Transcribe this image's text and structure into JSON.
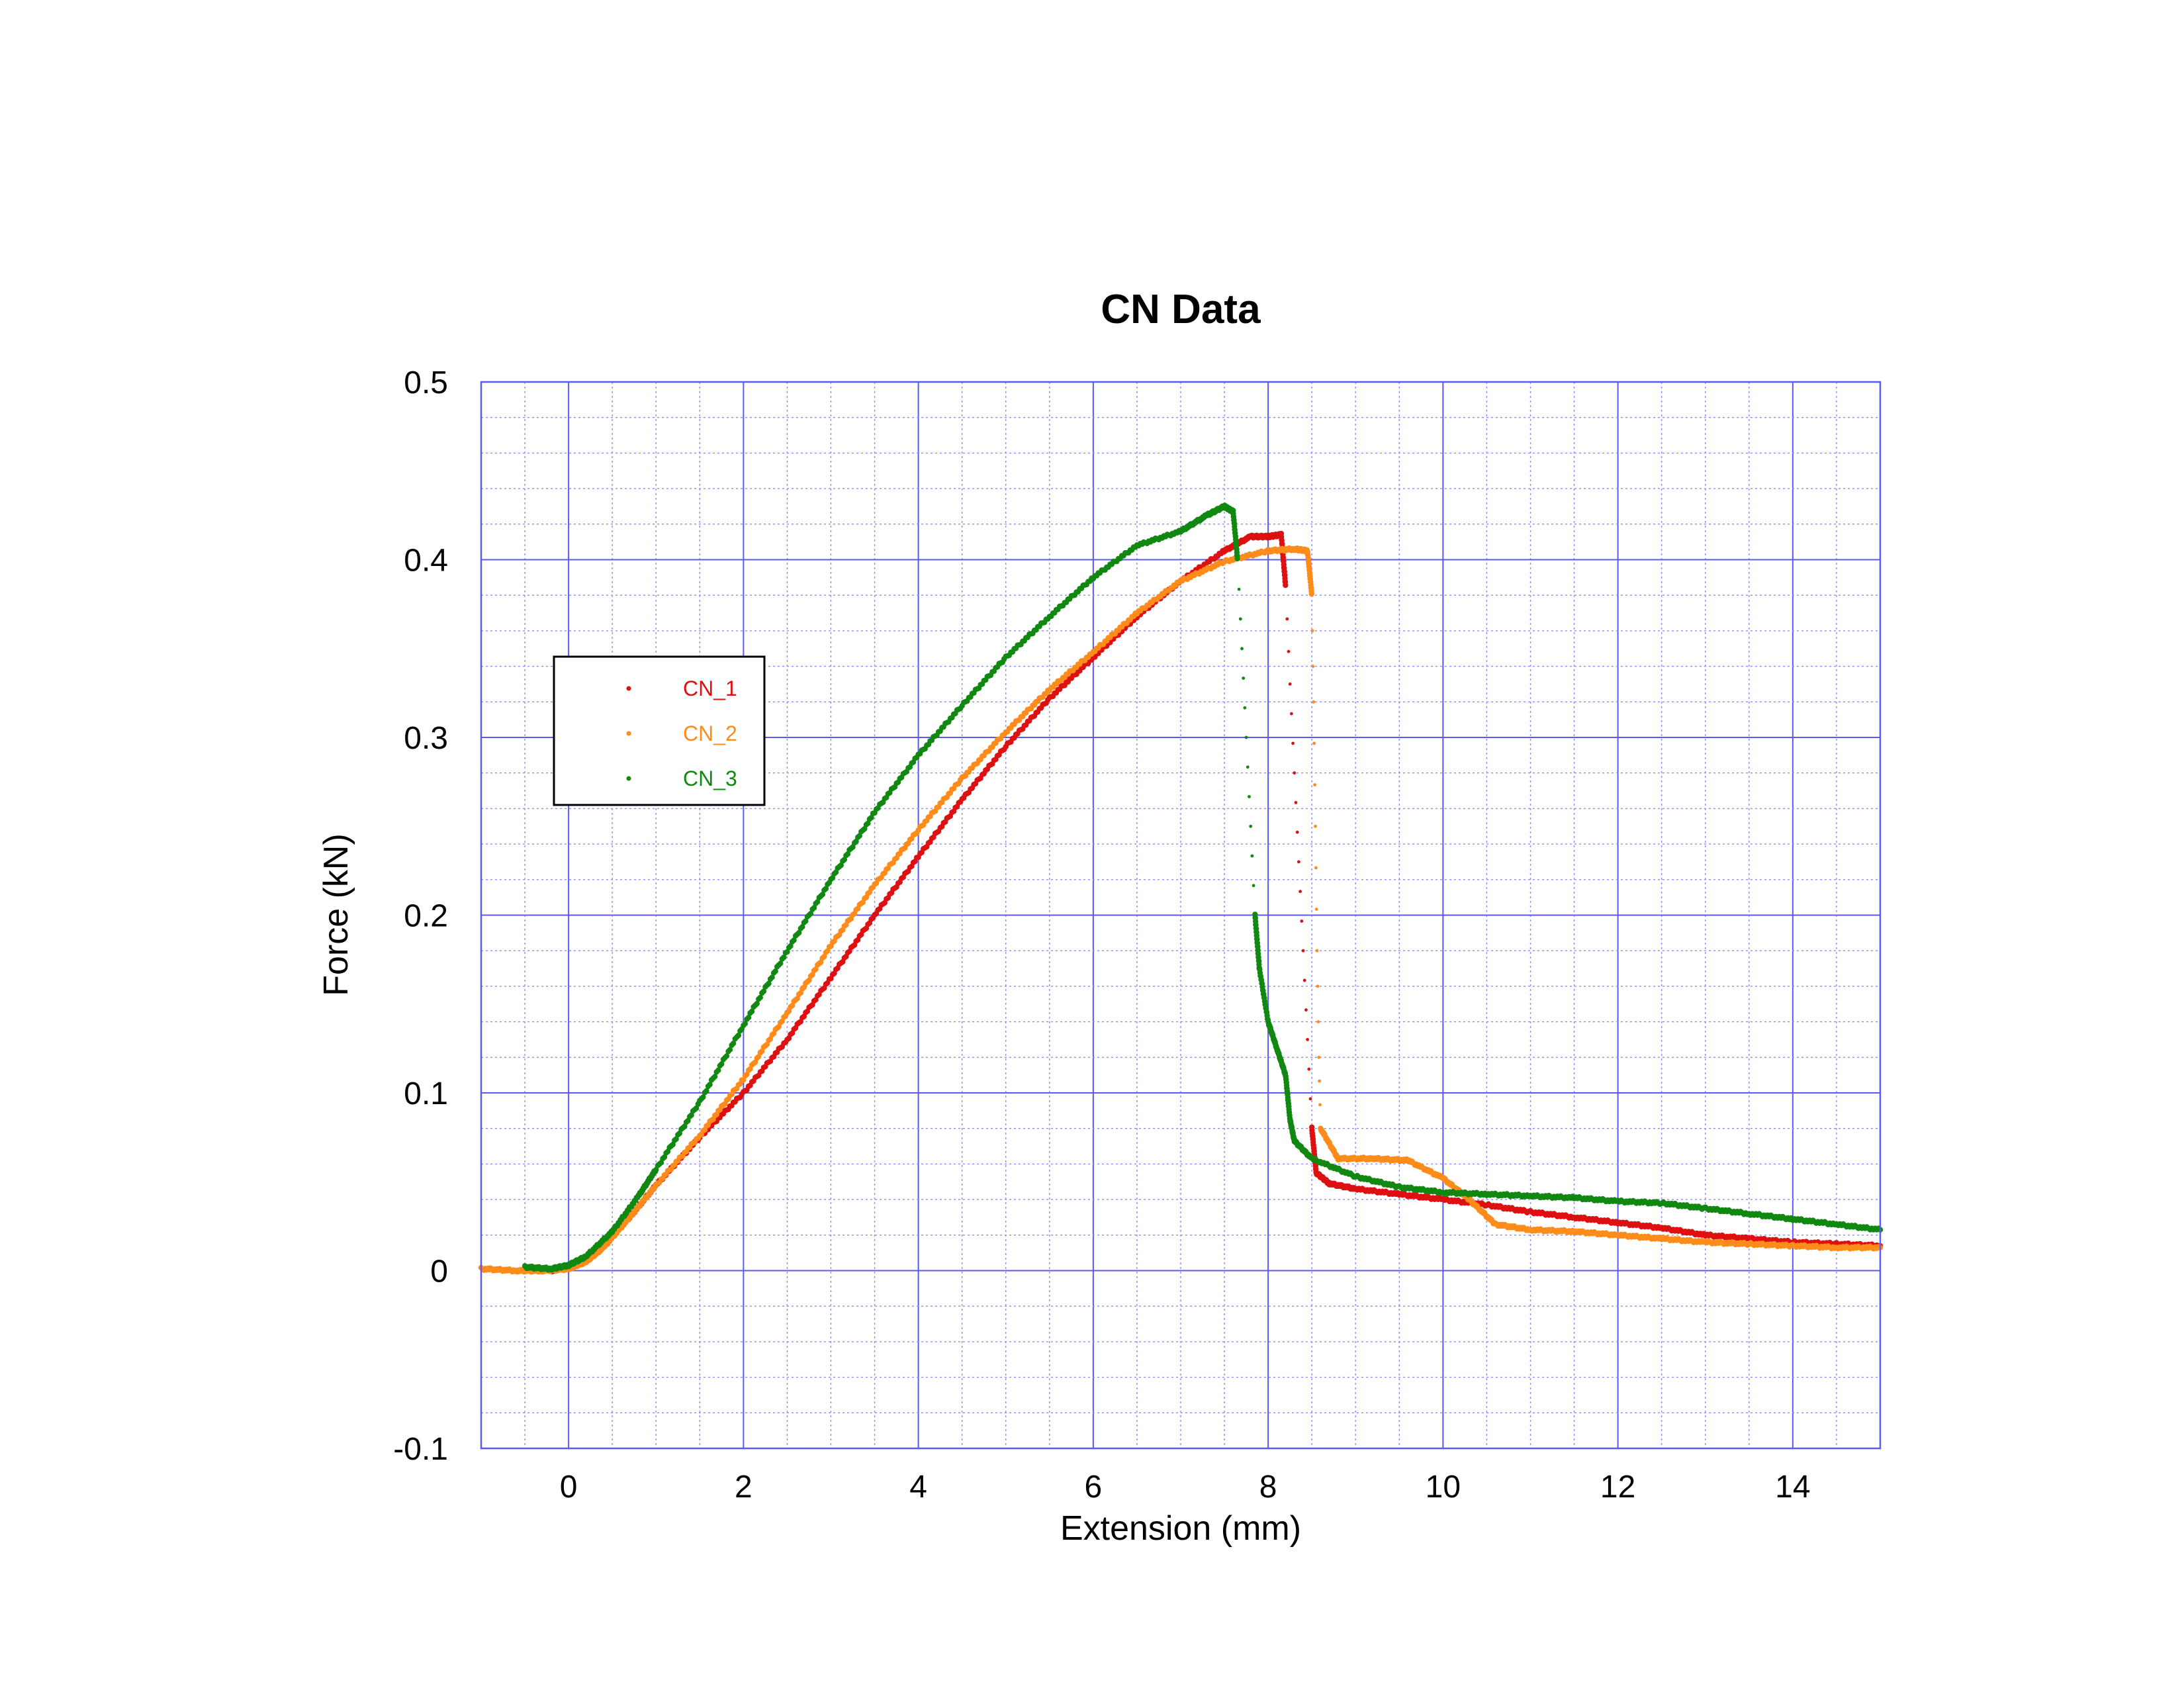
{
  "chart_data": {
    "type": "scatter",
    "title": "CN Data",
    "xlabel": "Extension (mm)",
    "ylabel": "Force (kN)",
    "xlim": [
      -1,
      15
    ],
    "ylim": [
      -0.1,
      0.5
    ],
    "x_ticks": [
      0,
      2,
      4,
      6,
      8,
      10,
      12,
      14
    ],
    "y_ticks": [
      -0.1,
      0,
      0.1,
      0.2,
      0.3,
      0.4,
      0.5
    ],
    "x_tick_labels": [
      "0",
      "2",
      "4",
      "6",
      "8",
      "10",
      "12",
      "14"
    ],
    "y_tick_labels": [
      "-0.1",
      "0",
      "0.1",
      "0.2",
      "0.3",
      "0.4",
      "0.5"
    ],
    "grid": "major and minor, blue",
    "legend_position": "upper-left",
    "colors": {
      "grid_major": "#5a5af0",
      "grid_minor": "#8c8cf5",
      "frame": "#5a5af0"
    },
    "series": [
      {
        "name": "CN_1",
        "color": "#dd1111",
        "points": [
          [
            -0.2,
            0.0
          ],
          [
            0.0,
            0.002
          ],
          [
            0.2,
            0.006
          ],
          [
            0.4,
            0.015
          ],
          [
            0.7,
            0.03
          ],
          [
            1.0,
            0.048
          ],
          [
            1.5,
            0.075
          ],
          [
            2.0,
            0.1
          ],
          [
            2.5,
            0.13
          ],
          [
            3.0,
            0.165
          ],
          [
            3.5,
            0.2
          ],
          [
            4.0,
            0.233
          ],
          [
            4.5,
            0.265
          ],
          [
            5.0,
            0.295
          ],
          [
            5.5,
            0.322
          ],
          [
            6.0,
            0.345
          ],
          [
            6.5,
            0.368
          ],
          [
            7.0,
            0.388
          ],
          [
            7.5,
            0.405
          ],
          [
            7.8,
            0.413
          ],
          [
            8.0,
            0.413
          ],
          [
            8.15,
            0.414
          ],
          [
            8.2,
            0.385
          ],
          [
            8.25,
            0.33
          ],
          [
            8.3,
            0.28
          ],
          [
            8.35,
            0.23
          ],
          [
            8.4,
            0.18
          ],
          [
            8.45,
            0.13
          ],
          [
            8.5,
            0.08
          ],
          [
            8.55,
            0.055
          ],
          [
            8.7,
            0.049
          ],
          [
            9.0,
            0.046
          ],
          [
            9.5,
            0.043
          ],
          [
            10.0,
            0.04
          ],
          [
            10.5,
            0.037
          ],
          [
            11.0,
            0.033
          ],
          [
            11.5,
            0.03
          ],
          [
            12.0,
            0.027
          ],
          [
            12.5,
            0.024
          ],
          [
            13.0,
            0.02
          ],
          [
            13.5,
            0.018
          ],
          [
            14.0,
            0.016
          ],
          [
            14.5,
            0.015
          ],
          [
            15.0,
            0.014
          ]
        ]
      },
      {
        "name": "CN_2",
        "color": "#ff8c1a",
        "points": [
          [
            -1.0,
            0.001
          ],
          [
            -0.6,
            0.0
          ],
          [
            -0.3,
            0.0
          ],
          [
            0.0,
            0.001
          ],
          [
            0.2,
            0.005
          ],
          [
            0.4,
            0.013
          ],
          [
            0.7,
            0.03
          ],
          [
            1.0,
            0.048
          ],
          [
            1.5,
            0.076
          ],
          [
            2.0,
            0.108
          ],
          [
            2.5,
            0.145
          ],
          [
            3.0,
            0.183
          ],
          [
            3.5,
            0.217
          ],
          [
            4.0,
            0.248
          ],
          [
            4.5,
            0.277
          ],
          [
            5.0,
            0.303
          ],
          [
            5.5,
            0.327
          ],
          [
            6.0,
            0.348
          ],
          [
            6.5,
            0.37
          ],
          [
            7.0,
            0.388
          ],
          [
            7.5,
            0.399
          ],
          [
            8.0,
            0.405
          ],
          [
            8.3,
            0.406
          ],
          [
            8.45,
            0.405
          ],
          [
            8.5,
            0.38
          ],
          [
            8.52,
            0.32
          ],
          [
            8.54,
            0.25
          ],
          [
            8.56,
            0.18
          ],
          [
            8.58,
            0.12
          ],
          [
            8.6,
            0.08
          ],
          [
            8.8,
            0.063
          ],
          [
            9.2,
            0.063
          ],
          [
            9.6,
            0.062
          ],
          [
            10.0,
            0.052
          ],
          [
            10.3,
            0.04
          ],
          [
            10.6,
            0.026
          ],
          [
            11.0,
            0.023
          ],
          [
            11.5,
            0.022
          ],
          [
            12.0,
            0.02
          ],
          [
            12.5,
            0.018
          ],
          [
            13.0,
            0.016
          ],
          [
            13.5,
            0.015
          ],
          [
            14.0,
            0.014
          ],
          [
            14.5,
            0.013
          ],
          [
            15.0,
            0.013
          ]
        ]
      },
      {
        "name": "CN_3",
        "color": "#118811",
        "points": [
          [
            -0.5,
            0.002
          ],
          [
            -0.2,
            0.001
          ],
          [
            0.0,
            0.003
          ],
          [
            0.2,
            0.008
          ],
          [
            0.5,
            0.022
          ],
          [
            0.8,
            0.042
          ],
          [
            1.0,
            0.057
          ],
          [
            1.5,
            0.095
          ],
          [
            2.0,
            0.138
          ],
          [
            2.5,
            0.18
          ],
          [
            3.0,
            0.22
          ],
          [
            3.5,
            0.258
          ],
          [
            4.0,
            0.29
          ],
          [
            4.5,
            0.318
          ],
          [
            5.0,
            0.345
          ],
          [
            5.5,
            0.368
          ],
          [
            6.0,
            0.39
          ],
          [
            6.5,
            0.408
          ],
          [
            7.0,
            0.416
          ],
          [
            7.3,
            0.425
          ],
          [
            7.5,
            0.43
          ],
          [
            7.6,
            0.427
          ],
          [
            7.65,
            0.4
          ],
          [
            7.7,
            0.35
          ],
          [
            7.75,
            0.3
          ],
          [
            7.8,
            0.25
          ],
          [
            7.85,
            0.2
          ],
          [
            7.9,
            0.17
          ],
          [
            8.0,
            0.14
          ],
          [
            8.1,
            0.125
          ],
          [
            8.2,
            0.11
          ],
          [
            8.25,
            0.085
          ],
          [
            8.3,
            0.073
          ],
          [
            8.5,
            0.063
          ],
          [
            9.0,
            0.053
          ],
          [
            9.5,
            0.047
          ],
          [
            10.0,
            0.044
          ],
          [
            10.5,
            0.043
          ],
          [
            11.0,
            0.042
          ],
          [
            11.5,
            0.041
          ],
          [
            12.0,
            0.039
          ],
          [
            12.5,
            0.038
          ],
          [
            13.0,
            0.035
          ],
          [
            13.5,
            0.032
          ],
          [
            14.0,
            0.029
          ],
          [
            14.5,
            0.026
          ],
          [
            15.0,
            0.023
          ]
        ]
      }
    ]
  }
}
